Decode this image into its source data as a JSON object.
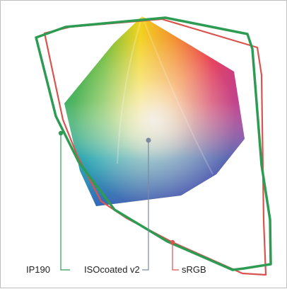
{
  "labels": {
    "ip190": "IP190",
    "isocoated": "ISOcoated v2",
    "srgb": "sRGB"
  },
  "colors": {
    "ip190": "#2e9b52",
    "isocoated": "#7d8aa0",
    "srgb": "#d9534f"
  }
}
